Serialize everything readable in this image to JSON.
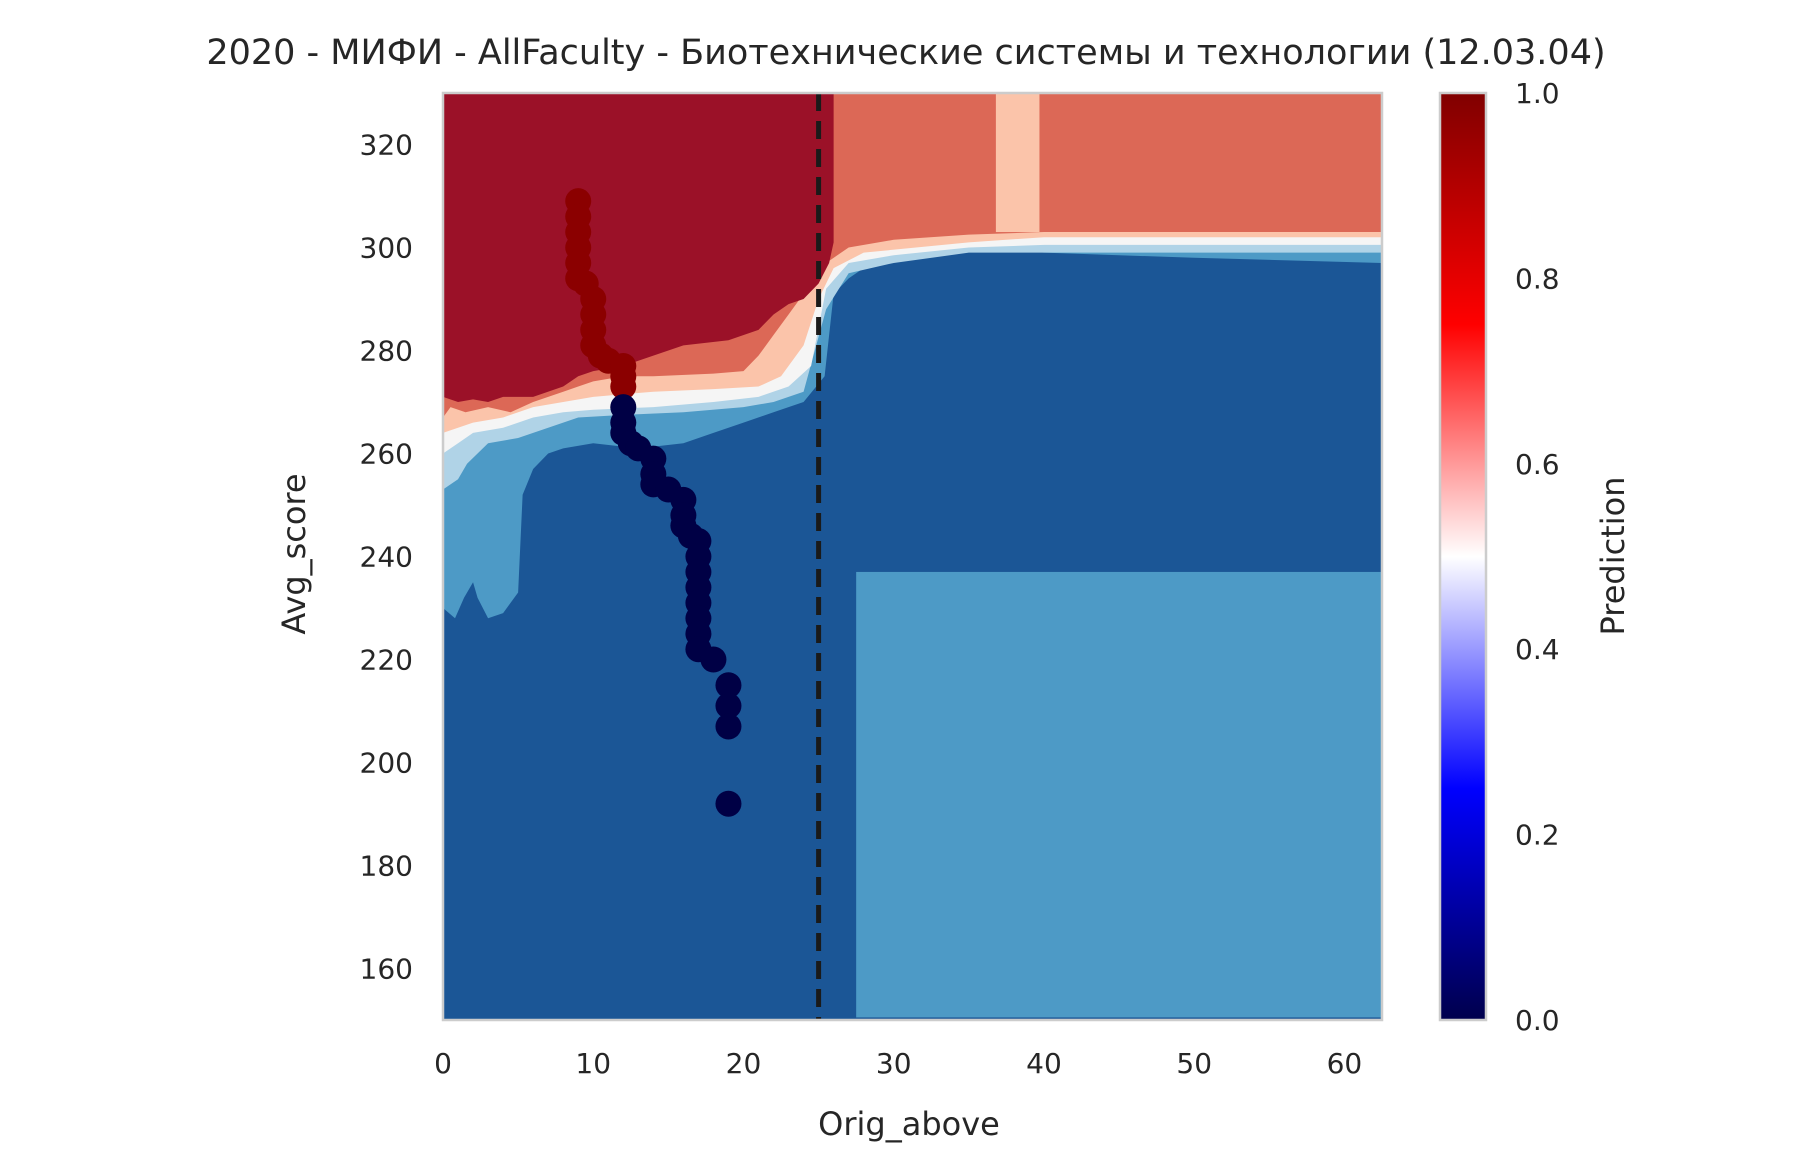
{
  "chart_data": {
    "type": "heatmap",
    "title": "2020 - МИФИ - AllFaculty - Биотехнические системы и технологии (12.03.04)",
    "xlabel": "Orig_above",
    "ylabel": "Avg_score",
    "xlim": [
      0,
      62.5
    ],
    "ylim": [
      150,
      330
    ],
    "xticks": [
      "0",
      "10",
      "20",
      "30",
      "40",
      "50",
      "60"
    ],
    "yticks": [
      "160",
      "180",
      "200",
      "220",
      "240",
      "260",
      "280",
      "300",
      "320"
    ],
    "grid": false,
    "colorbar": {
      "label": "Prediction",
      "range": [
        0,
        1
      ],
      "ticks": [
        "0.0",
        "0.2",
        "0.4",
        "0.6",
        "0.8",
        "1.0"
      ],
      "colormap": "seismic"
    },
    "threshold_line": {
      "x": 25,
      "style": "dashed",
      "color": "#1a1a1a"
    },
    "contour_colors": {
      "0.0-0.1": "#1b5696",
      "0.1-0.2": "#4d9ac6",
      "0.2-0.3": "#b0d3e7",
      "0.4-0.5": "#f5f5f5",
      "0.5-0.6": "#fbc4aa",
      "0.6-0.8": "#dc6856",
      "0.8-1.0": "#9b1128"
    },
    "series": [
      {
        "color": "#8b0000",
        "points": [
          [
            9,
            309
          ],
          [
            9,
            306
          ],
          [
            9,
            303
          ],
          [
            9,
            300
          ],
          [
            9,
            297
          ],
          [
            9,
            294
          ],
          [
            9.5,
            293
          ],
          [
            10,
            290
          ],
          [
            10,
            287
          ],
          [
            10,
            284
          ],
          [
            10,
            281
          ],
          [
            10.5,
            279
          ],
          [
            11,
            278
          ],
          [
            12,
            277
          ],
          [
            12,
            275
          ],
          [
            12,
            273
          ]
        ]
      },
      {
        "color": "#000045",
        "points": [
          [
            12,
            269
          ],
          [
            12,
            266
          ],
          [
            12,
            264
          ],
          [
            12.5,
            262
          ],
          [
            13,
            261
          ],
          [
            14,
            259
          ],
          [
            14,
            256
          ],
          [
            14,
            254
          ],
          [
            15,
            253
          ],
          [
            16,
            251
          ],
          [
            16,
            248
          ],
          [
            16,
            246
          ],
          [
            16.5,
            244
          ],
          [
            17,
            243
          ],
          [
            17,
            240
          ],
          [
            17,
            237
          ],
          [
            17,
            234
          ],
          [
            17,
            231
          ],
          [
            17,
            228
          ],
          [
            17,
            225
          ],
          [
            17,
            222
          ],
          [
            18,
            220
          ],
          [
            19,
            215
          ],
          [
            19,
            211
          ],
          [
            19,
            207
          ],
          [
            19,
            192
          ]
        ]
      }
    ]
  }
}
